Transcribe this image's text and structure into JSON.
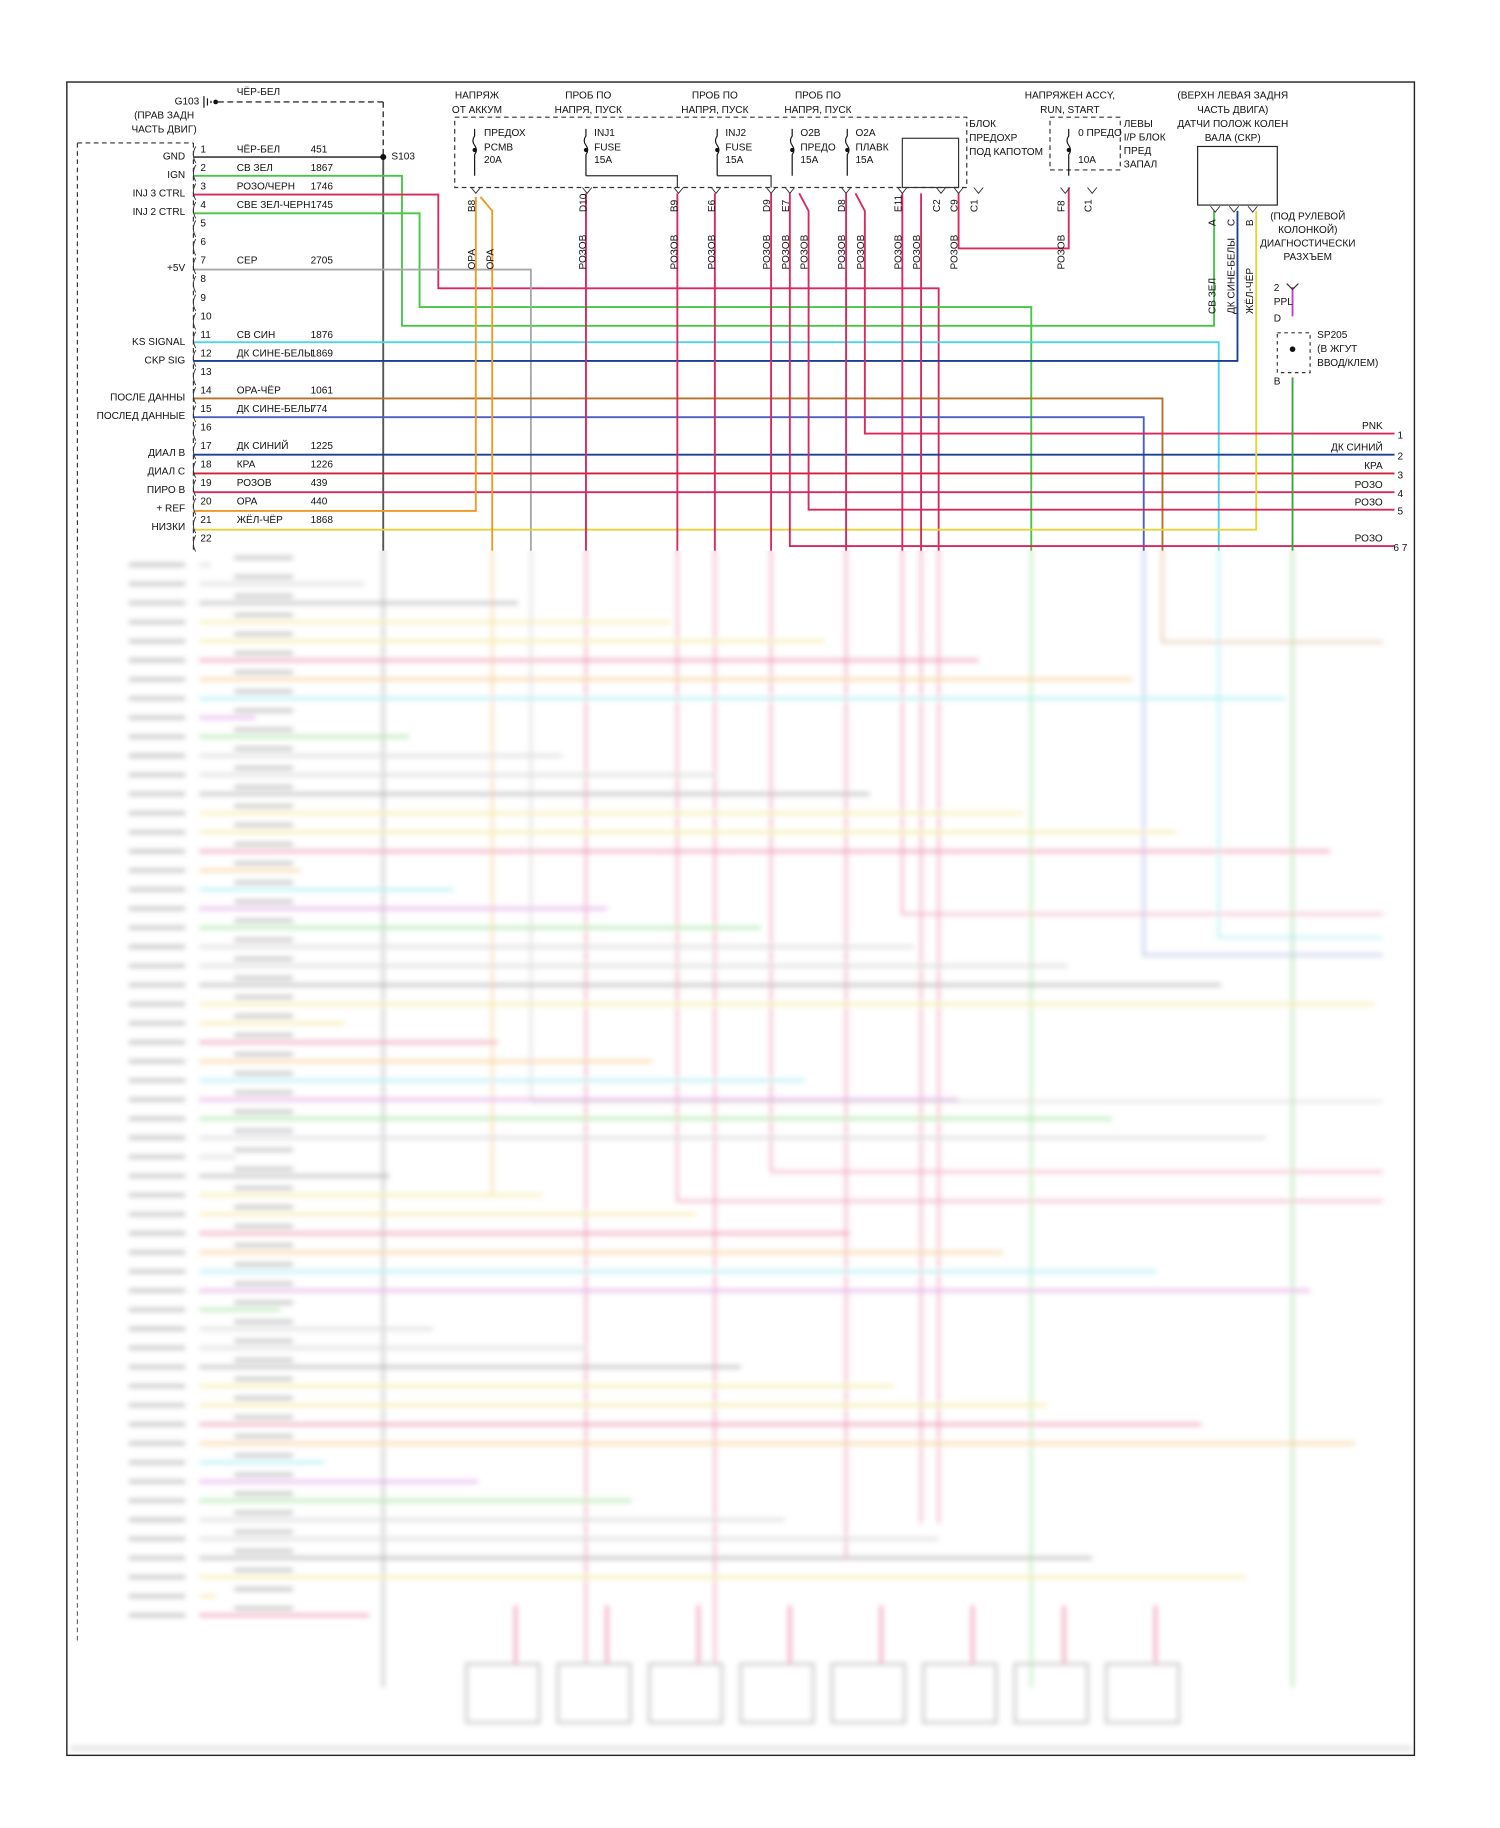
{
  "ground": {
    "id": "G103",
    "wire": "ЧЁР-БЕЛ",
    "location": [
      "(ПРАВ ЗАДН",
      "ЧАСТЬ ДВИГ)"
    ]
  },
  "splice_top": "S103",
  "pcm_pins": [
    {
      "pin": "1",
      "label": "GND",
      "wire": "ЧЁР-БЕЛ",
      "circuit": "451"
    },
    {
      "pin": "2",
      "label": "IGN",
      "wire": "СВ ЗЕЛ",
      "circuit": "1867"
    },
    {
      "pin": "3",
      "label": "INJ 3 CTRL",
      "wire": "РОЗО/ЧЕРН",
      "circuit": "1746"
    },
    {
      "pin": "4",
      "label": "INJ 2 CTRL",
      "wire": "СВЕ ЗЕЛ-ЧЕРН",
      "circuit": "1745"
    },
    {
      "pin": "5"
    },
    {
      "pin": "6"
    },
    {
      "pin": "7",
      "label": "+5V",
      "wire": "СЕР",
      "circuit": "2705"
    },
    {
      "pin": "8"
    },
    {
      "pin": "9"
    },
    {
      "pin": "10"
    },
    {
      "pin": "11",
      "label": "KS SIGNAL",
      "wire": "СВ СИН",
      "circuit": "1876"
    },
    {
      "pin": "12",
      "label": "CKP SIG",
      "wire": "ДК СИНЕ-БЕЛЫ",
      "circuit": "1869"
    },
    {
      "pin": "13"
    },
    {
      "pin": "14",
      "label": "ПОСЛЕ ДАННЫ",
      "wire": "ОРА-ЧЁР",
      "circuit": "1061"
    },
    {
      "pin": "15",
      "label": "ПОСЛЕД ДАННЫЕ",
      "wire": "ДК СИНЕ-БЕЛЫ",
      "circuit": "774"
    },
    {
      "pin": "16"
    },
    {
      "pin": "17",
      "label": "ДИАЛ В",
      "wire": "ДК СИНИЙ",
      "circuit": "1225"
    },
    {
      "pin": "18",
      "label": "ДИАЛ С",
      "wire": "КРА",
      "circuit": "1226"
    },
    {
      "pin": "19",
      "label": "ПИРО В",
      "wire": "РОЗОВ",
      "circuit": "439"
    },
    {
      "pin": "20",
      "label": "+ REF",
      "wire": "ОРА",
      "circuit": "440"
    },
    {
      "pin": "21",
      "label": "НИЗКИ",
      "wire": "ЖЁЛ-ЧЁР",
      "circuit": "1868"
    },
    {
      "pin": "22"
    }
  ],
  "fuse_headers": [
    [
      "НАПРЯЖ",
      "ОТ АККУМ"
    ],
    [
      "ПРОБ ПО",
      "НАПРЯ, ПУСК"
    ],
    [
      "ПРОБ ПО",
      "НАПРЯ, ПУСК"
    ],
    [
      "ПРОБ ПО",
      "НАПРЯ, ПУСК"
    ],
    [
      "НАПРЯЖЕН ACCY,",
      "RUN, START"
    ]
  ],
  "fuses": [
    [
      "ПРЕДОХ",
      "PCMB",
      "20A"
    ],
    [
      "INJ1",
      "FUSE",
      "15A"
    ],
    [
      "INJ2",
      "FUSE",
      "15A"
    ],
    [
      "O2B",
      "ПРЕДО",
      "15A"
    ],
    [
      "O2A",
      "ПЛАВК",
      "15A"
    ],
    [
      "0 ПРЕДО",
      "10A"
    ]
  ],
  "fuse_block": [
    "БЛОК",
    "ПРЕДОХР",
    "ПОД КАПОТОМ"
  ],
  "ip_block": [
    "ЛЕВЫ",
    "I/P БЛОК",
    "ПРЕД",
    "ЗАПАЛ"
  ],
  "connector_pins": [
    "B8",
    "D10",
    "B9",
    "E6",
    "D9",
    "E7",
    "D8",
    "E11",
    "C2",
    "C9",
    "C1",
    "F8",
    "C1"
  ],
  "vertical_wires": [
    "ОРА",
    "ОРА",
    "РОЗОВ",
    "РОЗОВ",
    "РОЗОВ",
    "РОЗОВ",
    "РОЗОВ",
    "РОЗОВ",
    "РОЗОВ",
    "РОЗОВ",
    "РОЗОВ",
    "РОЗОВ",
    "РОЗОВ",
    "РОЗОВ"
  ],
  "ckp_sensor": {
    "title": [
      "(ВЕРХН ЛЕВАЯ ЗАДНЯ",
      "ЧАСТЬ ДВИГА)",
      "ДАТЧИ ПОЛОЖ КОЛЕН",
      "ВАЛА (СКР)"
    ],
    "pins": [
      {
        "pin": "A",
        "wire": "СВ ЗЕЛ"
      },
      {
        "pin": "C",
        "wire": "ДК СИНЕ-БЕЛЫ"
      },
      {
        "pin": "B",
        "wire": "ЖЁЛ-ЧЁР"
      }
    ]
  },
  "dlc": {
    "title": [
      "(ПОД РУЛЕВОЙ",
      "КОЛОНКОЙ)",
      "ДИАГНОСТИЧЕСКИ",
      "РАЗХЪЕМ"
    ],
    "pin": "2",
    "wire": "PPL",
    "cavity": "D"
  },
  "splice_right": {
    "id": "SP205",
    "location": [
      "(В ЖГУТ",
      "ВВОД/КЛЕМ)"
    ],
    "cavity": "B"
  },
  "outputs": [
    {
      "label": "PNK",
      "pin": "1"
    },
    {
      "label": "ДК СИНИЙ",
      "pin": "2"
    },
    {
      "label": "КРА",
      "pin": "3"
    },
    {
      "label": "РОЗО",
      "pin": "4"
    },
    {
      "label": "РОЗО",
      "pin": "5"
    },
    {
      "label": "РОЗО",
      "pin": "6 7"
    }
  ]
}
